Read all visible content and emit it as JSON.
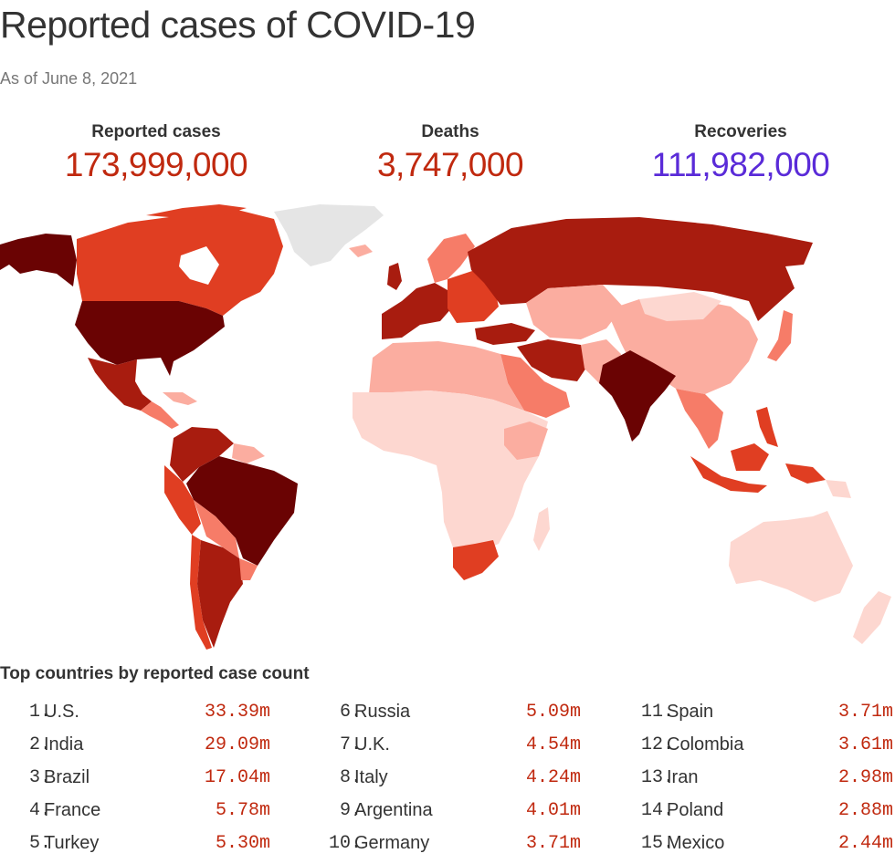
{
  "header": {
    "title": "Reported cases of COVID-19",
    "subtitle": "As of June 8, 2021"
  },
  "stats": {
    "cases": {
      "label": "Reported cases",
      "value": "173,999,000",
      "color": "#c0290f"
    },
    "deaths": {
      "label": "Deaths",
      "value": "3,747,000",
      "color": "#c0290f"
    },
    "recoveries": {
      "label": "Recoveries",
      "value": "111,982,000",
      "color": "#5a2bd8"
    }
  },
  "map": {
    "legend_colors": [
      "#fdd7d0",
      "#fbada0",
      "#f67c68",
      "#e03e22",
      "#a81c0f",
      "#6a0303"
    ],
    "no_data_color": "#e5e5e5"
  },
  "top_list": {
    "title": "Top countries by reported case count",
    "value_color": "#c0290f",
    "items": [
      {
        "rank": "1",
        "country": "U.S.",
        "cases": "33.39m"
      },
      {
        "rank": "2",
        "country": "India",
        "cases": "29.09m"
      },
      {
        "rank": "3",
        "country": "Brazil",
        "cases": "17.04m"
      },
      {
        "rank": "4",
        "country": "France",
        "cases": "5.78m"
      },
      {
        "rank": "5",
        "country": "Turkey",
        "cases": "5.30m"
      },
      {
        "rank": "6",
        "country": "Russia",
        "cases": "5.09m"
      },
      {
        "rank": "7",
        "country": "U.K.",
        "cases": "4.54m"
      },
      {
        "rank": "8",
        "country": "Italy",
        "cases": "4.24m"
      },
      {
        "rank": "9",
        "country": "Argentina",
        "cases": "4.01m"
      },
      {
        "rank": "10",
        "country": "Germany",
        "cases": "3.71m"
      },
      {
        "rank": "11",
        "country": "Spain",
        "cases": "3.71m"
      },
      {
        "rank": "12",
        "country": "Colombia",
        "cases": "3.61m"
      },
      {
        "rank": "13",
        "country": "Iran",
        "cases": "2.98m"
      },
      {
        "rank": "14",
        "country": "Poland",
        "cases": "2.88m"
      },
      {
        "rank": "15",
        "country": "Mexico",
        "cases": "2.44m"
      }
    ]
  }
}
